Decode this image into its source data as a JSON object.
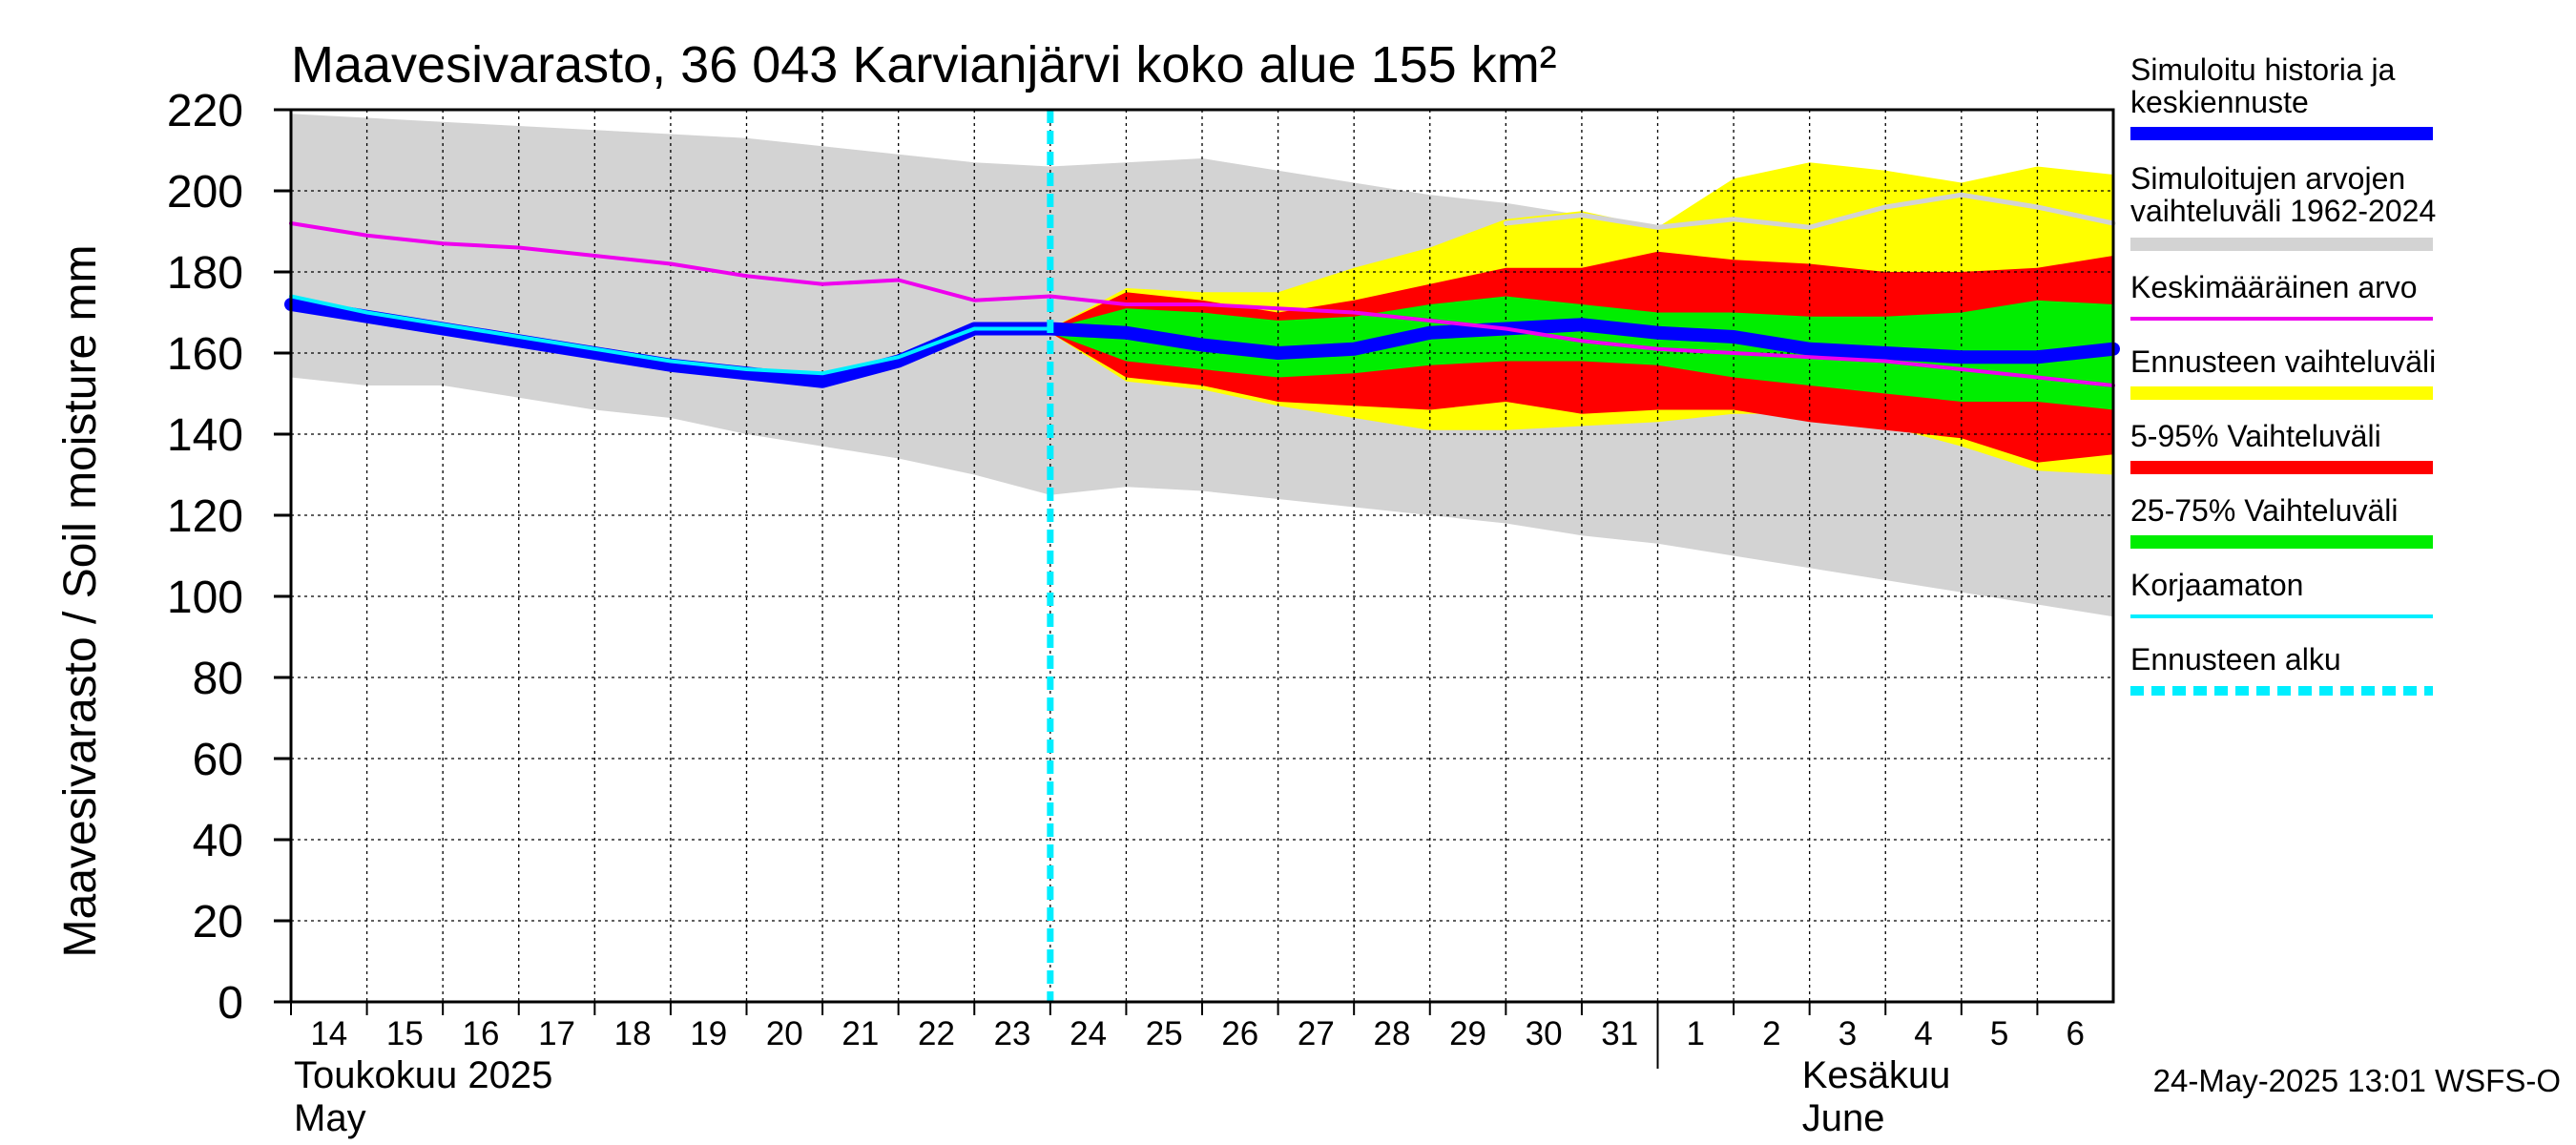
{
  "chart_data": {
    "type": "area",
    "title": "Maavesivarasto, 36 043 Karvianjärvi koko alue 155 km²",
    "ylabel": "Maavesivarasto / Soil moisture   mm",
    "ylim": [
      0,
      220
    ],
    "yticks": [
      0,
      20,
      40,
      60,
      80,
      100,
      120,
      140,
      160,
      180,
      200,
      220
    ],
    "xlim": [
      0,
      24
    ],
    "x_day_labels": [
      "14",
      "15",
      "16",
      "17",
      "18",
      "19",
      "20",
      "21",
      "22",
      "23",
      "24",
      "25",
      "26",
      "27",
      "28",
      "29",
      "30",
      "31",
      "1",
      "2",
      "3",
      "4",
      "5",
      "6"
    ],
    "month_labels": [
      {
        "name": "Toukokuu  2025",
        "name_en": "May",
        "day_index": 0
      },
      {
        "name": "Kesäkuu",
        "name_en": "June",
        "day_index": 19
      }
    ],
    "forecast_start_day": 10,
    "grid": true,
    "colors": {
      "history_range": "#d3d3d3",
      "forecast_range": "#ffff00",
      "p5_95": "#ff0000",
      "p25_75": "#00ee00",
      "median": "#0000ff",
      "mean": "#ee00ee",
      "uncorrected": "#00eeff",
      "forecast_start": "#00eeff",
      "history_max": "#d3d3d3"
    },
    "series": [
      {
        "name": "Simuloitujen arvojen vaihteluväli 1962-2024",
        "kind": "band",
        "x": [
          0,
          1,
          2,
          3,
          4,
          5,
          6,
          7,
          8,
          9,
          10,
          11,
          12,
          13,
          14,
          15,
          16,
          17,
          18,
          19,
          20,
          21,
          22,
          23,
          24
        ],
        "low": [
          154,
          152,
          152,
          149,
          146,
          144,
          140,
          137,
          134,
          130,
          125,
          127,
          126,
          124,
          122,
          120,
          118,
          115,
          113,
          110,
          107,
          104,
          101,
          98,
          95
        ],
        "high": [
          219,
          218,
          217,
          216,
          215,
          214,
          213,
          211,
          209,
          207,
          206,
          207,
          208,
          205,
          202,
          199,
          197,
          194,
          191,
          190,
          189,
          188,
          187,
          187,
          186
        ]
      },
      {
        "name": "Ennusteen vaihteluväli",
        "kind": "band",
        "x": [
          10,
          11,
          12,
          13,
          14,
          15,
          16,
          17,
          18,
          19,
          20,
          21,
          22,
          23,
          24
        ],
        "low": [
          165,
          153,
          151,
          147,
          144,
          141,
          141,
          142,
          143,
          145,
          145,
          142,
          137,
          131,
          130
        ],
        "high": [
          166,
          176,
          175,
          175,
          181,
          186,
          193,
          195,
          191,
          203,
          207,
          205,
          202,
          206,
          204
        ]
      },
      {
        "name": "5-95% Vaihteluväli",
        "kind": "band",
        "x": [
          10,
          11,
          12,
          13,
          14,
          15,
          16,
          17,
          18,
          19,
          20,
          21,
          22,
          23,
          24
        ],
        "low": [
          165,
          154,
          152,
          148,
          147,
          146,
          148,
          145,
          146,
          146,
          143,
          141,
          139,
          133,
          135
        ],
        "high": [
          166,
          175,
          173,
          170,
          173,
          177,
          181,
          181,
          185,
          183,
          182,
          180,
          180,
          181,
          184
        ]
      },
      {
        "name": "25-75% Vaihteluväli",
        "kind": "band",
        "x": [
          10,
          11,
          12,
          13,
          14,
          15,
          16,
          17,
          18,
          19,
          20,
          21,
          22,
          23,
          24
        ],
        "low": [
          165,
          158,
          156,
          154,
          155,
          157,
          158,
          158,
          157,
          154,
          152,
          150,
          148,
          148,
          146
        ],
        "high": [
          166,
          171,
          170,
          168,
          169,
          172,
          174,
          172,
          170,
          170,
          169,
          169,
          170,
          173,
          172
        ]
      },
      {
        "name": "Simuloitu historia ja keskiennuste",
        "kind": "line",
        "x": [
          0,
          1,
          2,
          3,
          4,
          5,
          6,
          7,
          8,
          9,
          10,
          11,
          12,
          13,
          14,
          15,
          16,
          17,
          18,
          19,
          20,
          21,
          22,
          23,
          24
        ],
        "values": [
          172,
          169,
          166,
          163,
          160,
          157,
          155,
          153,
          158,
          166,
          166,
          165,
          162,
          160,
          161,
          165,
          166,
          167,
          165,
          164,
          161,
          160,
          159,
          159,
          161
        ]
      },
      {
        "name": "Simuloitujen max",
        "kind": "line",
        "x": [
          16,
          17,
          18,
          19,
          20,
          21,
          22,
          23,
          24
        ],
        "values": [
          192,
          194,
          191,
          193,
          191,
          196,
          199,
          196,
          192
        ]
      },
      {
        "name": "Keskimääräinen arvo",
        "kind": "line",
        "x": [
          0,
          1,
          2,
          3,
          4,
          5,
          6,
          7,
          8,
          9,
          10,
          11,
          12,
          13,
          14,
          15,
          16,
          17,
          18,
          19,
          20,
          21,
          22,
          23,
          24
        ],
        "values": [
          192,
          189,
          187,
          186,
          184,
          182,
          179,
          177,
          178,
          173,
          174,
          172,
          172,
          171,
          170,
          168,
          166,
          163,
          161,
          160,
          159,
          158,
          156,
          154,
          152
        ]
      },
      {
        "name": "Korjaamaton",
        "kind": "line",
        "x": [
          0,
          1,
          2,
          3,
          4,
          5,
          6,
          7,
          8,
          9,
          10
        ],
        "values": [
          174,
          170,
          167,
          164,
          161,
          158,
          156,
          155,
          159,
          166,
          166
        ]
      }
    ],
    "legend": {
      "placement": "right",
      "entries": [
        {
          "lines": [
            "Simuloitu historia ja",
            "keskiennuste"
          ],
          "color": "#0000ff",
          "style": "solid"
        },
        {
          "lines": [
            "Simuloitujen arvojen",
            "vaihteluväli 1962-2024"
          ],
          "color": "#d3d3d3",
          "style": "solid"
        },
        {
          "lines": [
            "Keskimääräinen arvo"
          ],
          "color": "#ee00ee",
          "style": "thin"
        },
        {
          "lines": [
            "Ennusteen vaihteluväli"
          ],
          "color": "#ffff00",
          "style": "solid"
        },
        {
          "lines": [
            "5-95% Vaihteluväli"
          ],
          "color": "#ff0000",
          "style": "solid"
        },
        {
          "lines": [
            "25-75% Vaihteluväli"
          ],
          "color": "#00ee00",
          "style": "solid"
        },
        {
          "lines": [
            "Korjaamaton"
          ],
          "color": "#00eeff",
          "style": "thin"
        },
        {
          "lines": [
            "Ennusteen alku"
          ],
          "color": "#00eeff",
          "style": "dashed"
        }
      ]
    },
    "footer": "24-May-2025 13:01 WSFS-O"
  }
}
